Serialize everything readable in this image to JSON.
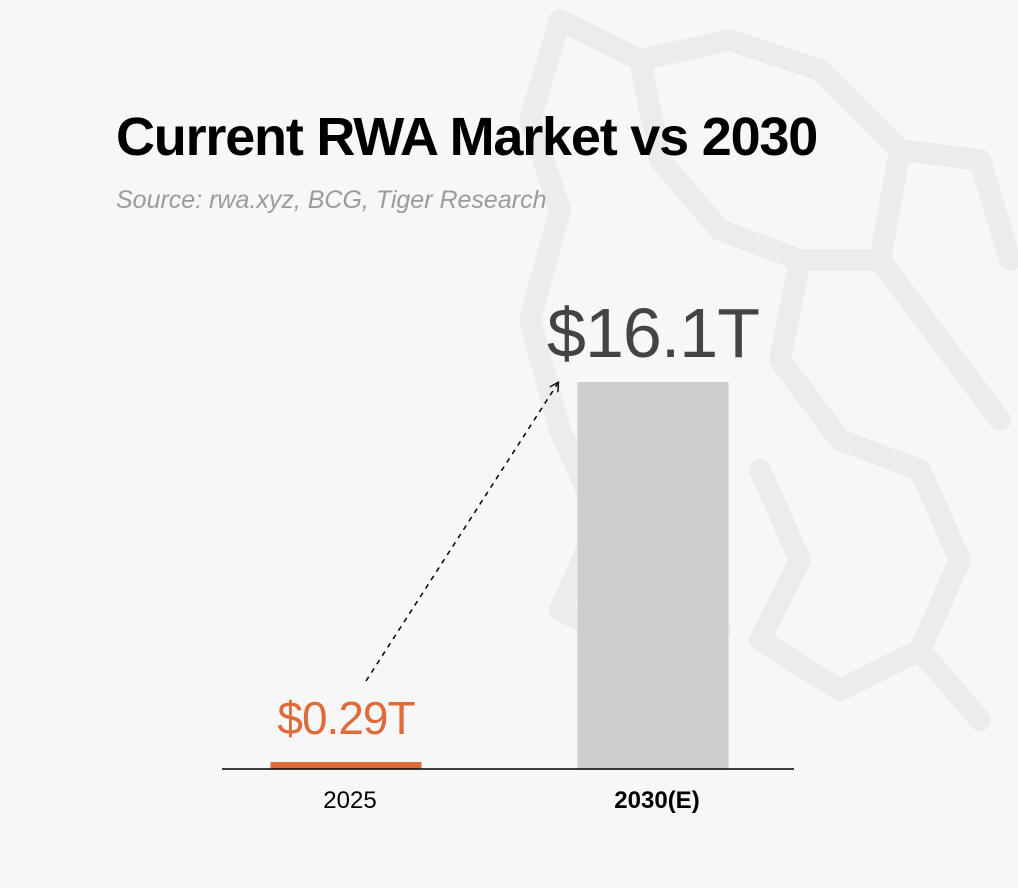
{
  "title": "Current RWA Market vs 2030",
  "subtitle": "Source: rwa.xyz, BCG, Tiger Research",
  "colors": {
    "background": "#f7f7f7",
    "current_bar": "#e06b3a",
    "projected_bar": "#cecece",
    "current_label": "#e06b3a",
    "projected_label": "#444444",
    "axis": "#000000",
    "watermark": "#ececec"
  },
  "chart_data": {
    "type": "bar",
    "title": "Current RWA Market vs 2030",
    "subtitle": "Source: rwa.xyz, BCG, Tiger Research",
    "categories": [
      "2025",
      "2030(E)"
    ],
    "values": [
      0.29,
      16.1
    ],
    "value_labels": [
      "$0.29T",
      "$16.1T"
    ],
    "unit": "T",
    "ylim": [
      0,
      16.1
    ],
    "grid": false,
    "legend": "none",
    "annotations": [
      "dashed arrow from 2025 bar to 2030(E) bar"
    ]
  }
}
